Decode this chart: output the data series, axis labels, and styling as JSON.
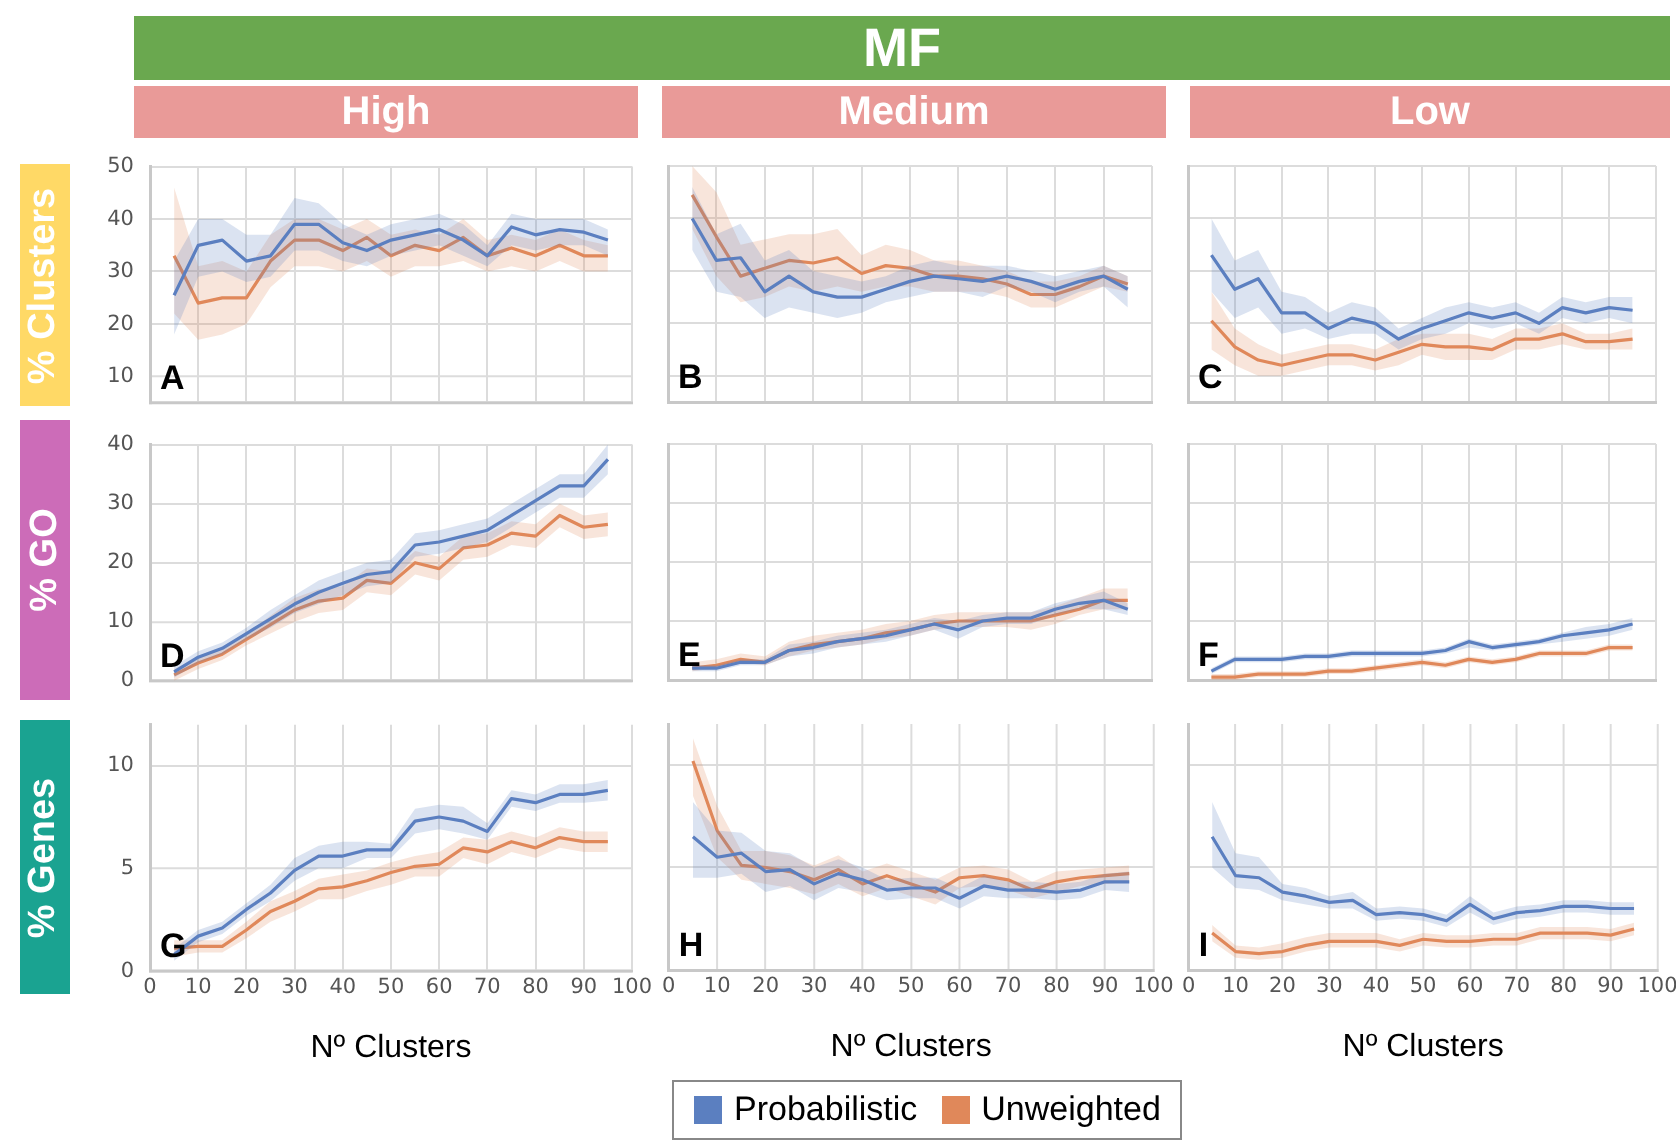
{
  "chart_data": [
    {
      "type": "other",
      "title": "MF"
    },
    {
      "type": "line",
      "title": "High",
      "ylabel": "% Clusters",
      "annotations": [
        "A"
      ],
      "legend": "bottom",
      "x": [
        5,
        10,
        15,
        20,
        25,
        30,
        35,
        40,
        45,
        50,
        55,
        60,
        65,
        70,
        75,
        80,
        85,
        90,
        95
      ],
      "xlim": [
        0,
        100
      ],
      "xticks": [
        0,
        10,
        20,
        30,
        40,
        50,
        60,
        70,
        80,
        90,
        100
      ],
      "ylim": [
        5,
        50
      ],
      "yticks": [
        10,
        20,
        30,
        40,
        50
      ],
      "grid": true,
      "tick_labels": "y",
      "series": [
        {
          "name": "Probabilistic",
          "color": "#5b7fc0",
          "values": [
            25.5,
            35,
            36,
            32,
            33,
            39,
            39,
            35.5,
            34,
            36,
            37,
            38,
            36,
            33,
            38.5,
            37,
            38,
            37.5,
            36
          ],
          "lower": [
            18,
            29,
            30,
            28,
            29,
            34,
            34,
            32,
            31,
            33,
            34,
            35,
            33,
            31,
            35,
            34,
            35,
            35,
            33
          ],
          "upper": [
            32,
            40,
            40,
            37,
            37,
            44,
            43,
            39,
            37,
            39,
            40,
            41,
            39,
            35,
            41,
            40,
            40,
            40,
            38
          ]
        },
        {
          "name": "Unweighted",
          "color": "#e0885a",
          "values": [
            33,
            24,
            25,
            25,
            32,
            36,
            36,
            34,
            36.5,
            33,
            35,
            34,
            36.5,
            33,
            34.5,
            33,
            35,
            33,
            33
          ],
          "lower": [
            22,
            17,
            18,
            20,
            27,
            31,
            31,
            30,
            32,
            29,
            31,
            31,
            32,
            30,
            31,
            30,
            32,
            30,
            30
          ],
          "upper": [
            46,
            31,
            32,
            30,
            37,
            40,
            40,
            38,
            40,
            37,
            38,
            37,
            40,
            36,
            37,
            36,
            38,
            36,
            35
          ]
        }
      ]
    },
    {
      "type": "line",
      "title": "Medium",
      "annotations": [
        "B"
      ],
      "x": [
        5,
        10,
        15,
        20,
        25,
        30,
        35,
        40,
        45,
        50,
        55,
        60,
        65,
        70,
        75,
        80,
        85,
        90,
        95
      ],
      "xlim": [
        0,
        100
      ],
      "xticks": [
        0,
        10,
        20,
        30,
        40,
        50,
        60,
        70,
        80,
        90,
        100
      ],
      "ylim": [
        5,
        50
      ],
      "yticks": [
        10,
        20,
        30,
        40,
        50
      ],
      "grid": true,
      "tick_labels": false,
      "series": [
        {
          "color": "#5b7fc0",
          "values": [
            40,
            32,
            32.5,
            26,
            29,
            26,
            25,
            25,
            26.5,
            28,
            29,
            28.5,
            28,
            29,
            28,
            26.5,
            28,
            29,
            26.5
          ],
          "lower": [
            34,
            26,
            25,
            21,
            23,
            22,
            21,
            22,
            24,
            25,
            26,
            26,
            25,
            27,
            26,
            24,
            26,
            27,
            23
          ],
          "upper": [
            46,
            37,
            39,
            32,
            34,
            30,
            29,
            28,
            29,
            31,
            32,
            31,
            31,
            31,
            30,
            29,
            30,
            31,
            29
          ]
        },
        {
          "color": "#e0885a",
          "values": [
            44.5,
            36.5,
            29,
            30.5,
            32,
            31.5,
            32.5,
            29.5,
            31,
            30.5,
            29,
            29,
            28.5,
            27.5,
            25.5,
            25.5,
            27,
            29,
            27.5
          ],
          "lower": [
            38,
            29,
            24,
            25,
            27,
            26,
            27,
            26,
            27,
            27,
            26,
            26,
            26,
            25,
            23,
            23,
            25,
            27,
            26
          ],
          "upper": [
            50,
            45,
            35,
            36,
            37,
            37,
            38,
            33,
            35,
            34,
            32,
            32,
            31,
            30,
            28,
            28,
            29,
            31,
            29
          ]
        }
      ]
    },
    {
      "type": "line",
      "title": "Low",
      "annotations": [
        "C"
      ],
      "x": [
        5,
        10,
        15,
        20,
        25,
        30,
        35,
        40,
        45,
        50,
        55,
        60,
        65,
        70,
        75,
        80,
        85,
        90,
        95
      ],
      "xlim": [
        0,
        100
      ],
      "xticks": [
        0,
        10,
        20,
        30,
        40,
        50,
        60,
        70,
        80,
        90,
        100
      ],
      "ylim": [
        5,
        50
      ],
      "yticks": [
        10,
        20,
        30,
        40,
        50
      ],
      "grid": true,
      "tick_labels": false,
      "series": [
        {
          "color": "#5b7fc0",
          "values": [
            33,
            26.5,
            28.5,
            22,
            22,
            19,
            21,
            20,
            17,
            19,
            20.5,
            22,
            21,
            22,
            20,
            23,
            22,
            23,
            22.5
          ],
          "lower": [
            26,
            21,
            23,
            18,
            19,
            17,
            18,
            18,
            15,
            17,
            18,
            20,
            19,
            20,
            18,
            21,
            20,
            21,
            20
          ],
          "upper": [
            40,
            32,
            34,
            26,
            25,
            22,
            24,
            23,
            19,
            21,
            23,
            24,
            23,
            24,
            22,
            25,
            24,
            25,
            25
          ]
        },
        {
          "color": "#e0885a",
          "values": [
            20.5,
            15.5,
            13,
            12,
            13,
            14,
            14,
            13,
            14.5,
            16,
            15.5,
            15.5,
            15,
            17,
            17,
            18,
            16.5,
            16.5,
            17
          ],
          "lower": [
            15,
            12,
            10,
            10,
            11,
            12,
            12,
            11,
            12,
            14,
            13,
            13,
            13,
            15,
            15,
            16,
            15,
            15,
            15
          ],
          "upper": [
            26,
            19,
            16,
            14,
            15,
            16,
            16,
            15,
            17,
            18,
            18,
            18,
            17,
            19,
            19,
            20,
            18,
            18,
            19
          ]
        }
      ]
    },
    {
      "type": "line",
      "ylabel": "% GO",
      "annotations": [
        "D"
      ],
      "x": [
        5,
        10,
        15,
        20,
        25,
        30,
        35,
        40,
        45,
        50,
        55,
        60,
        65,
        70,
        75,
        80,
        85,
        90,
        95
      ],
      "xlim": [
        0,
        100
      ],
      "xticks": [
        0,
        10,
        20,
        30,
        40,
        50,
        60,
        70,
        80,
        90,
        100
      ],
      "ylim": [
        0,
        40
      ],
      "yticks": [
        0,
        10,
        20,
        30,
        40
      ],
      "grid": true,
      "tick_labels": "y",
      "series": [
        {
          "color": "#5b7fc0",
          "values": [
            1.5,
            4,
            5.5,
            8,
            10.5,
            13,
            15,
            16.5,
            18,
            18.5,
            23,
            23.5,
            24.5,
            25.5,
            28,
            30.5,
            33,
            33,
            37.5
          ],
          "lower": [
            0.5,
            3,
            4.5,
            7,
            9,
            11.5,
            13,
            14.5,
            16,
            16.5,
            21,
            21.5,
            22.5,
            23.5,
            26,
            28.5,
            31,
            31,
            35
          ],
          "upper": [
            2.5,
            5,
            6.5,
            9,
            12,
            14.5,
            17,
            18.5,
            20,
            20.5,
            25,
            25.5,
            26.5,
            27.5,
            30,
            32.5,
            35,
            35,
            40
          ]
        },
        {
          "color": "#e0885a",
          "values": [
            1,
            3,
            4.5,
            7,
            9.5,
            12,
            13.5,
            14,
            17,
            16.5,
            20,
            19,
            22.5,
            23,
            25,
            24.5,
            28,
            26,
            26.5
          ],
          "lower": [
            0,
            2,
            3.5,
            6,
            8,
            10,
            11.5,
            12,
            15,
            14.5,
            18,
            17,
            20.5,
            21,
            23,
            22.5,
            26,
            24,
            24.5
          ],
          "upper": [
            2,
            4,
            5.5,
            8,
            11,
            14,
            15.5,
            16,
            19,
            18.5,
            22,
            21,
            24.5,
            25,
            27,
            26.5,
            30,
            28,
            28.5
          ]
        }
      ]
    },
    {
      "type": "line",
      "annotations": [
        "E"
      ],
      "x": [
        5,
        10,
        15,
        20,
        25,
        30,
        35,
        40,
        45,
        50,
        55,
        60,
        65,
        70,
        75,
        80,
        85,
        90,
        95
      ],
      "xlim": [
        0,
        100
      ],
      "xticks": [
        0,
        10,
        20,
        30,
        40,
        50,
        60,
        70,
        80,
        90,
        100
      ],
      "ylim": [
        0,
        40
      ],
      "yticks": [
        0,
        10,
        20,
        30,
        40
      ],
      "grid": true,
      "tick_labels": false,
      "series": [
        {
          "color": "#5b7fc0",
          "values": [
            2,
            2,
            3,
            3,
            5,
            5.5,
            6.5,
            7,
            7.5,
            8.5,
            9.5,
            8.5,
            10,
            10.5,
            10.5,
            12,
            13,
            13.5,
            12
          ],
          "lower": [
            1.5,
            1.5,
            2.5,
            2.5,
            4,
            4.5,
            5.5,
            6,
            6.5,
            7.5,
            8.5,
            7,
            9,
            9.5,
            9.5,
            11,
            12,
            12,
            11
          ],
          "upper": [
            2.5,
            2.5,
            3.5,
            3.5,
            6,
            6.5,
            7.5,
            8,
            8.5,
            9.5,
            10.5,
            10,
            11,
            11.5,
            11.5,
            13,
            14,
            15,
            13
          ]
        },
        {
          "color": "#e0885a",
          "values": [
            2,
            2.5,
            3.5,
            3,
            5,
            6,
            6.5,
            7,
            8,
            8.5,
            9.5,
            10,
            10,
            10,
            10,
            11,
            12,
            13.5,
            13.5
          ],
          "lower": [
            1.5,
            2,
            3,
            2.5,
            4,
            5,
            5.5,
            6,
            7,
            7.5,
            8.5,
            9,
            9,
            9,
            8.5,
            9.5,
            11,
            12,
            12
          ],
          "upper": [
            3,
            3.5,
            4.5,
            4,
            6.5,
            7.5,
            8,
            8.5,
            9.5,
            10,
            11,
            11.5,
            11.5,
            11.5,
            11.5,
            12.5,
            14,
            15.5,
            15.5
          ]
        }
      ]
    },
    {
      "type": "line",
      "annotations": [
        "F"
      ],
      "x": [
        5,
        10,
        15,
        20,
        25,
        30,
        35,
        40,
        45,
        50,
        55,
        60,
        65,
        70,
        75,
        80,
        85,
        90,
        95
      ],
      "xlim": [
        0,
        100
      ],
      "xticks": [
        0,
        10,
        20,
        30,
        40,
        50,
        60,
        70,
        80,
        90,
        100
      ],
      "ylim": [
        0,
        40
      ],
      "yticks": [
        0,
        10,
        20,
        30,
        40
      ],
      "grid": true,
      "tick_labels": false,
      "series": [
        {
          "color": "#5b7fc0",
          "values": [
            1.5,
            3.5,
            3.5,
            3.5,
            4,
            4,
            4.5,
            4.5,
            4.5,
            4.5,
            5,
            6.5,
            5.5,
            6,
            6.5,
            7.5,
            8,
            8.5,
            9.5
          ],
          "lower": [
            1,
            3,
            3,
            3,
            3.5,
            3.5,
            4,
            4,
            4,
            4,
            4.5,
            5.5,
            5,
            5.5,
            6,
            6.5,
            7,
            7.5,
            8.5
          ],
          "upper": [
            2,
            4,
            4,
            4,
            4.5,
            4.5,
            5,
            5,
            5,
            5,
            5.5,
            7,
            6,
            6.5,
            7,
            8,
            9,
            9.5,
            10.5
          ]
        },
        {
          "color": "#e0885a",
          "values": [
            0.5,
            0.5,
            1,
            1,
            1,
            1.5,
            1.5,
            2,
            2.5,
            3,
            2.5,
            3.5,
            3,
            3.5,
            4.5,
            4.5,
            4.5,
            5.5,
            5.5
          ],
          "lower": [
            0,
            0,
            0.5,
            0.5,
            0.5,
            1,
            1,
            1.5,
            2,
            2.5,
            2,
            3,
            2.5,
            3,
            4,
            4,
            4,
            5,
            5
          ],
          "upper": [
            1,
            1,
            1.5,
            1.5,
            1.5,
            2,
            2,
            2.5,
            3,
            3.5,
            3,
            4,
            3.5,
            4,
            5,
            5,
            5,
            6,
            6
          ]
        }
      ]
    },
    {
      "type": "line",
      "ylabel": "% Genes",
      "xlabel": "Nº Clusters",
      "annotations": [
        "G"
      ],
      "x": [
        5,
        10,
        15,
        20,
        25,
        30,
        35,
        40,
        45,
        50,
        55,
        60,
        65,
        70,
        75,
        80,
        85,
        90,
        95
      ],
      "xlim": [
        0,
        100
      ],
      "xticks": [
        0,
        10,
        20,
        30,
        40,
        50,
        60,
        70,
        80,
        90,
        100
      ],
      "ylim": [
        0,
        12
      ],
      "yticks": [
        0,
        5,
        10
      ],
      "grid": true,
      "series": [
        {
          "color": "#5b7fc0",
          "values": [
            0.8,
            1.7,
            2.1,
            3,
            3.8,
            4.9,
            5.6,
            5.6,
            5.9,
            5.9,
            7.3,
            7.5,
            7.3,
            6.8,
            8.4,
            8.2,
            8.6,
            8.6,
            8.8
          ],
          "lower": [
            0.5,
            1.4,
            1.8,
            2.7,
            3.4,
            4.4,
            5,
            5,
            5.5,
            5.5,
            6.7,
            6.9,
            6.7,
            6.4,
            8,
            7.8,
            8.2,
            8.2,
            8.3
          ],
          "upper": [
            1.1,
            2,
            2.4,
            3.3,
            4.2,
            5.5,
            6.1,
            6.3,
            6.3,
            6.2,
            7.9,
            8.1,
            8,
            7.2,
            8.8,
            8.6,
            9.1,
            9.1,
            9.3
          ]
        },
        {
          "color": "#e0885a",
          "values": [
            1.1,
            1.2,
            1.2,
            2,
            2.9,
            3.4,
            4,
            4.1,
            4.4,
            4.8,
            5.1,
            5.2,
            6,
            5.8,
            6.3,
            6,
            6.5,
            6.3,
            6.3
          ],
          "lower": [
            0.7,
            0.9,
            0.9,
            1.6,
            2.4,
            2.9,
            3.5,
            3.5,
            3.9,
            4.2,
            4.6,
            4.6,
            5.5,
            5.2,
            5.8,
            5.5,
            6,
            5.8,
            5.8
          ],
          "upper": [
            1.5,
            1.5,
            1.5,
            2.4,
            3.4,
            3.9,
            4.5,
            4.7,
            4.9,
            5.3,
            5.6,
            5.8,
            6.5,
            6.4,
            6.8,
            6.5,
            7,
            6.8,
            6.8
          ]
        }
      ]
    },
    {
      "type": "line",
      "xlabel": "Nº Clusters",
      "annotations": [
        "H"
      ],
      "x": [
        5,
        10,
        15,
        20,
        25,
        30,
        35,
        40,
        45,
        50,
        55,
        60,
        65,
        70,
        75,
        80,
        85,
        90,
        95
      ],
      "xlim": [
        0,
        100
      ],
      "xticks": [
        0,
        10,
        20,
        30,
        40,
        50,
        60,
        70,
        80,
        90,
        100
      ],
      "ylim": [
        0,
        12
      ],
      "yticks": [
        0,
        5,
        10
      ],
      "grid": true,
      "tick_labels": "x",
      "series": [
        {
          "color": "#5b7fc0",
          "values": [
            6.5,
            5.5,
            5.7,
            4.8,
            4.9,
            4.2,
            4.7,
            4.4,
            3.9,
            4,
            4,
            3.5,
            4.1,
            3.9,
            3.9,
            3.8,
            3.9,
            4.3,
            4.3
          ],
          "lower": [
            4.5,
            4.5,
            4.7,
            3.8,
            4.1,
            3.4,
            4,
            3.8,
            3.4,
            3.5,
            3.5,
            3,
            3.6,
            3.5,
            3.5,
            3.4,
            3.5,
            3.9,
            3.8
          ],
          "upper": [
            8.2,
            6.8,
            6.7,
            5.8,
            5.7,
            5,
            5.4,
            5,
            4.4,
            4.5,
            4.5,
            4,
            4.6,
            4.3,
            4.3,
            4.2,
            4.3,
            4.7,
            4.8
          ]
        },
        {
          "color": "#e0885a",
          "values": [
            10.2,
            6.8,
            5.1,
            5,
            4.8,
            4.4,
            4.9,
            4.2,
            4.6,
            4.2,
            3.8,
            4.5,
            4.6,
            4.4,
            3.9,
            4.3,
            4.5,
            4.6,
            4.7
          ],
          "lower": [
            8.5,
            5.5,
            4.4,
            4.2,
            4,
            3.7,
            4.2,
            3.6,
            4,
            3.6,
            3.2,
            4,
            4.1,
            3.9,
            3.5,
            3.8,
            4.1,
            4.2,
            4.3
          ],
          "upper": [
            11.3,
            8,
            5.8,
            5.8,
            5.6,
            5.1,
            5.6,
            4.8,
            5.2,
            4.8,
            4.4,
            5,
            5.1,
            4.9,
            4.3,
            4.8,
            4.9,
            5,
            5.1
          ]
        }
      ]
    },
    {
      "type": "line",
      "xlabel": "Nº Clusters",
      "annotations": [
        "I"
      ],
      "x": [
        5,
        10,
        15,
        20,
        25,
        30,
        35,
        40,
        45,
        50,
        55,
        60,
        65,
        70,
        75,
        80,
        85,
        90,
        95
      ],
      "xlim": [
        0,
        100
      ],
      "xticks": [
        0,
        10,
        20,
        30,
        40,
        50,
        60,
        70,
        80,
        90,
        100
      ],
      "ylim": [
        0,
        12
      ],
      "yticks": [
        0,
        5,
        10
      ],
      "grid": true,
      "tick_labels": "x",
      "series": [
        {
          "color": "#5b7fc0",
          "values": [
            6.5,
            4.6,
            4.5,
            3.8,
            3.6,
            3.3,
            3.4,
            2.7,
            2.8,
            2.7,
            2.4,
            3.2,
            2.5,
            2.8,
            2.9,
            3.1,
            3.1,
            3,
            3
          ],
          "lower": [
            5,
            4,
            3.9,
            3.4,
            3.2,
            3,
            3,
            2.4,
            2.5,
            2.4,
            2.1,
            2.8,
            2.2,
            2.5,
            2.6,
            2.8,
            2.8,
            2.7,
            2.7
          ],
          "upper": [
            8.2,
            5.7,
            5.5,
            4.2,
            4,
            3.6,
            3.8,
            3,
            3.1,
            3,
            2.7,
            3.6,
            2.8,
            3.1,
            3.2,
            3.4,
            3.4,
            3.3,
            3.3
          ]
        },
        {
          "color": "#e0885a",
          "values": [
            1.8,
            0.9,
            0.8,
            0.9,
            1.2,
            1.4,
            1.4,
            1.4,
            1.2,
            1.5,
            1.4,
            1.4,
            1.5,
            1.5,
            1.8,
            1.8,
            1.8,
            1.7,
            2
          ],
          "lower": [
            1.4,
            0.6,
            0.5,
            0.6,
            0.9,
            1.1,
            1.1,
            1.1,
            0.9,
            1.2,
            1.1,
            1.1,
            1.2,
            1.2,
            1.5,
            1.5,
            1.5,
            1.4,
            1.7
          ],
          "upper": [
            2.2,
            1.2,
            1.1,
            1.3,
            1.6,
            1.8,
            1.8,
            1.8,
            1.5,
            1.8,
            1.7,
            1.7,
            1.8,
            1.8,
            2.1,
            2.1,
            2.1,
            2,
            2.3
          ]
        }
      ]
    }
  ]
}
